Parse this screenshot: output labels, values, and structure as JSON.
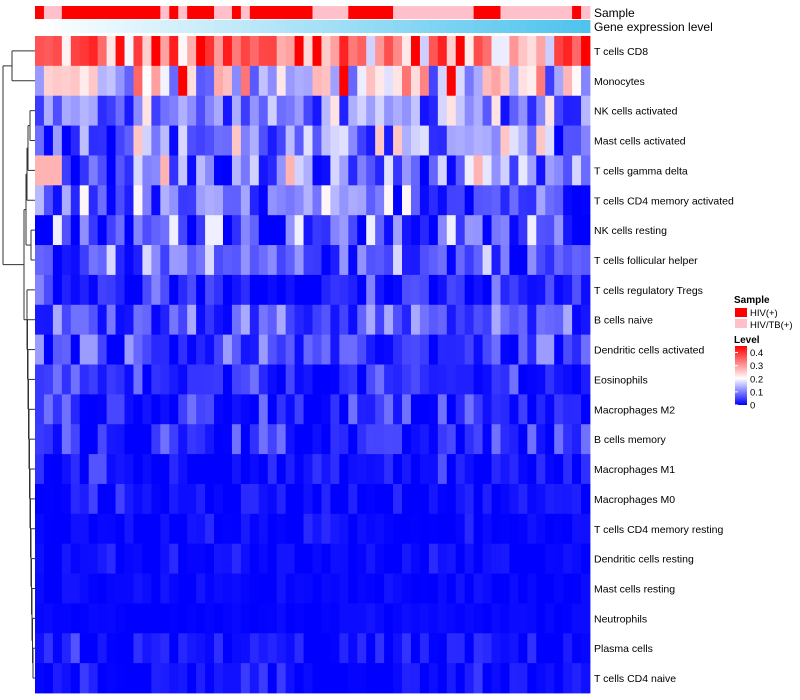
{
  "chart_data": {
    "type": "heatmap",
    "title": "",
    "annotation_tracks": [
      {
        "name": "Sample",
        "kind": "categorical"
      },
      {
        "name": "Gene expression level",
        "kind": "gradient",
        "colors": [
          "#ffffff",
          "#4fc3ee"
        ]
      }
    ],
    "sample_groups": {
      "labels": [
        "HIV(+)",
        "HIV/TB(+)"
      ],
      "colors": [
        "#ff0000",
        "#ffc0cb"
      ],
      "assignment": [
        0,
        1,
        1,
        0,
        0,
        0,
        0,
        0,
        0,
        0,
        0,
        0,
        0,
        0,
        1,
        0,
        1,
        0,
        0,
        0,
        1,
        1,
        0,
        1,
        0,
        0,
        0,
        0,
        0,
        0,
        0,
        1,
        1,
        1,
        1,
        0,
        0,
        0,
        0,
        0,
        1,
        1,
        1,
        1,
        1,
        1,
        1,
        1,
        1,
        0,
        0,
        0,
        1,
        1,
        1,
        1,
        1,
        1,
        1,
        1,
        0,
        1
      ]
    },
    "row_labels": [
      "T cells CD8",
      "Monocytes",
      "NK cells activated",
      "Mast cells activated",
      "T cells gamma delta",
      "T cells CD4 memory activated",
      "NK cells resting",
      "T cells follicular helper",
      "T cells regulatory  Tregs",
      "B cells naive",
      "Dendritic cells activated",
      "Eosinophils",
      "Macrophages M2",
      "B cells memory",
      "Macrophages M1",
      "Macrophages M0",
      "T cells CD4 memory resting",
      "Dendritic cells resting",
      "Mast cells resting",
      "Neutrophils",
      "Plasma cells",
      "T cells CD4 naive"
    ],
    "n_columns": 62,
    "row_mean_levels": [
      0.32,
      0.2,
      0.09,
      0.09,
      0.08,
      0.07,
      0.05,
      0.06,
      0.02,
      0.05,
      0.04,
      0.02,
      0.02,
      0.02,
      0.01,
      0.01,
      0.005,
      0.005,
      0.002,
      0.002,
      0.01,
      0.005
    ],
    "row_variability": [
      0.1,
      0.1,
      0.05,
      0.06,
      0.07,
      0.05,
      0.05,
      0.04,
      0.03,
      0.03,
      0.03,
      0.025,
      0.025,
      0.025,
      0.02,
      0.015,
      0.01,
      0.01,
      0.005,
      0.005,
      0.02,
      0.015
    ],
    "color_scale": {
      "title": "Level",
      "min": 0,
      "max": 0.45,
      "ticks": [
        0,
        0.1,
        0.2,
        0.3,
        0.4
      ],
      "tick_labels": [
        "0",
        "0.1",
        "0.2",
        "0.3",
        "0.4"
      ],
      "colors": [
        "#0000ff",
        "#ffffff",
        "#ff0000"
      ]
    },
    "legend": {
      "sample_title": "Sample",
      "level_title": "Level",
      "placement": "right"
    }
  }
}
